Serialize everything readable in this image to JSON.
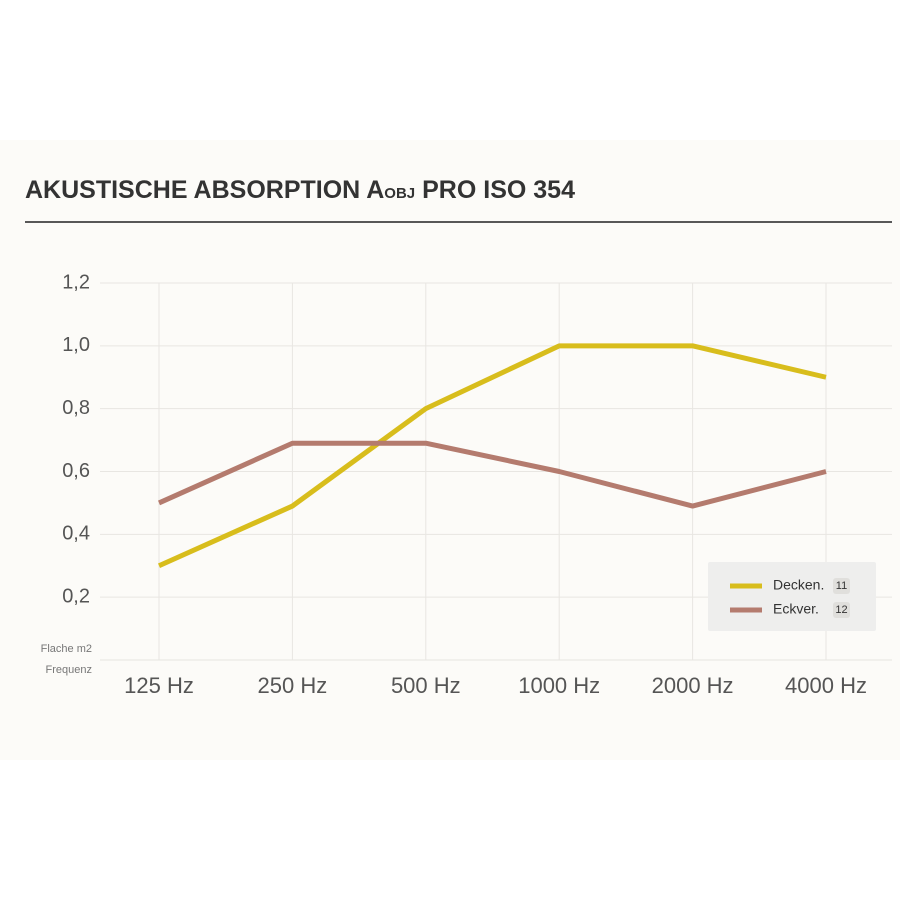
{
  "chart_data": {
    "type": "line",
    "title": "AKUSTISCHE ABSORPTION A",
    "title_subscript": "OBJ",
    "title_suffix": "PRO ISO 354",
    "y_label": "Flache m2",
    "x_label": "Frequenz",
    "categories": [
      "125 Hz",
      "250 Hz",
      "500 Hz",
      "1000 Hz",
      "2000 Hz",
      "4000 Hz"
    ],
    "series": [
      {
        "name": "Decken.",
        "badge": "11",
        "color": "#d8bd1c",
        "values": [
          0.3,
          0.49,
          0.8,
          1.0,
          1.0,
          0.9
        ]
      },
      {
        "name": "Eckver.",
        "badge": "12",
        "color": "#b47b6e",
        "values": [
          0.5,
          0.69,
          0.69,
          0.6,
          0.49,
          0.6
        ]
      }
    ],
    "ylim": [
      0,
      1.2
    ],
    "yticks": [
      {
        "value": 0.2,
        "label": "0,2"
      },
      {
        "value": 0.4,
        "label": "0,4"
      },
      {
        "value": 0.6,
        "label": "0,6"
      },
      {
        "value": 0.8,
        "label": "0,8"
      },
      {
        "value": 1.0,
        "label": "1,0"
      },
      {
        "value": 1.2,
        "label": "1,2"
      }
    ],
    "grid": true,
    "legend": "lower right"
  }
}
